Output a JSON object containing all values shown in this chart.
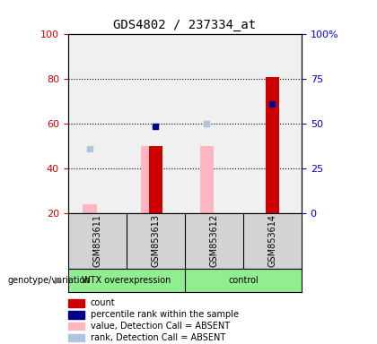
{
  "title": "GDS4802 / 237334_at",
  "samples": [
    "GSM853611",
    "GSM853613",
    "GSM853612",
    "GSM853614"
  ],
  "count_values": [
    null,
    50,
    null,
    81
  ],
  "percentile_values": [
    null,
    59,
    null,
    69
  ],
  "absent_value_values": [
    24,
    50,
    50,
    null
  ],
  "absent_rank_values": [
    49,
    null,
    60,
    null
  ],
  "bar_colors": {
    "count": "#cc0000",
    "percentile": "#00008b",
    "absent_value": "#ffb6c1",
    "absent_rank": "#b0c4de"
  },
  "ylim_left": [
    20,
    100
  ],
  "ylim_right": [
    0,
    100
  ],
  "yticks_left": [
    20,
    40,
    60,
    80,
    100
  ],
  "ytick_labels_right": [
    "0",
    "25",
    "50",
    "75",
    "100%"
  ],
  "background_color": "#ffffff",
  "plot_bg_color": "#f0f0f0",
  "left_ycolor": "#cc0000",
  "right_ycolor": "#0000cc"
}
